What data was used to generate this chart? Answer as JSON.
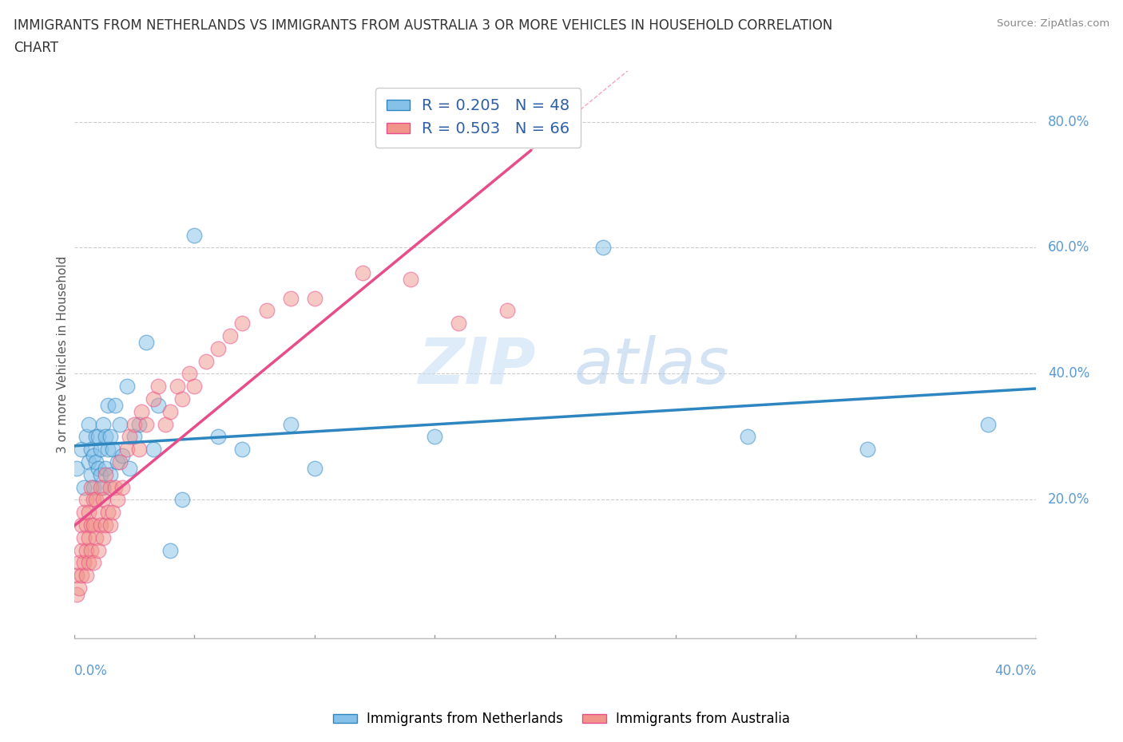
{
  "title_line1": "IMMIGRANTS FROM NETHERLANDS VS IMMIGRANTS FROM AUSTRALIA 3 OR MORE VEHICLES IN HOUSEHOLD CORRELATION",
  "title_line2": "CHART",
  "source": "Source: ZipAtlas.com",
  "ylabel": "3 or more Vehicles in Household",
  "yticks_labels": [
    "20.0%",
    "40.0%",
    "60.0%",
    "80.0%"
  ],
  "ytick_vals": [
    0.2,
    0.4,
    0.6,
    0.8
  ],
  "xlim": [
    0.0,
    0.4
  ],
  "ylim": [
    -0.02,
    0.88
  ],
  "legend1_label": "R = 0.205   N = 48",
  "legend2_label": "R = 0.503   N = 66",
  "color_netherlands": "#85C1E9",
  "color_australia": "#F1948A",
  "color_nl_line": "#2E86C1",
  "color_au_line": "#E74C8B",
  "watermark_zip": "ZIP",
  "watermark_atlas": "atlas",
  "legend_text_color": "#2E5FA3",
  "nl_x": [
    0.001,
    0.003,
    0.004,
    0.005,
    0.006,
    0.006,
    0.007,
    0.007,
    0.008,
    0.008,
    0.009,
    0.009,
    0.01,
    0.01,
    0.011,
    0.011,
    0.012,
    0.012,
    0.013,
    0.013,
    0.014,
    0.014,
    0.015,
    0.015,
    0.016,
    0.017,
    0.018,
    0.019,
    0.02,
    0.022,
    0.023,
    0.025,
    0.027,
    0.03,
    0.033,
    0.035,
    0.04,
    0.045,
    0.05,
    0.06,
    0.07,
    0.09,
    0.1,
    0.15,
    0.22,
    0.28,
    0.33,
    0.38
  ],
  "nl_y": [
    0.25,
    0.28,
    0.22,
    0.3,
    0.26,
    0.32,
    0.24,
    0.28,
    0.22,
    0.27,
    0.26,
    0.3,
    0.25,
    0.3,
    0.24,
    0.28,
    0.22,
    0.32,
    0.25,
    0.3,
    0.28,
    0.35,
    0.24,
    0.3,
    0.28,
    0.35,
    0.26,
    0.32,
    0.27,
    0.38,
    0.25,
    0.3,
    0.32,
    0.45,
    0.28,
    0.35,
    0.12,
    0.2,
    0.62,
    0.3,
    0.28,
    0.32,
    0.25,
    0.3,
    0.6,
    0.3,
    0.28,
    0.32
  ],
  "au_x": [
    0.001,
    0.001,
    0.002,
    0.002,
    0.003,
    0.003,
    0.003,
    0.004,
    0.004,
    0.004,
    0.005,
    0.005,
    0.005,
    0.005,
    0.006,
    0.006,
    0.006,
    0.007,
    0.007,
    0.007,
    0.008,
    0.008,
    0.008,
    0.009,
    0.009,
    0.01,
    0.01,
    0.011,
    0.011,
    0.012,
    0.012,
    0.013,
    0.013,
    0.014,
    0.015,
    0.015,
    0.016,
    0.017,
    0.018,
    0.019,
    0.02,
    0.022,
    0.023,
    0.025,
    0.027,
    0.028,
    0.03,
    0.033,
    0.035,
    0.038,
    0.04,
    0.043,
    0.045,
    0.048,
    0.05,
    0.055,
    0.06,
    0.065,
    0.07,
    0.08,
    0.09,
    0.1,
    0.12,
    0.14,
    0.16,
    0.18
  ],
  "au_y": [
    0.05,
    0.08,
    0.06,
    0.1,
    0.08,
    0.12,
    0.16,
    0.1,
    0.14,
    0.18,
    0.08,
    0.12,
    0.16,
    0.2,
    0.1,
    0.14,
    0.18,
    0.12,
    0.16,
    0.22,
    0.1,
    0.16,
    0.2,
    0.14,
    0.2,
    0.12,
    0.18,
    0.16,
    0.22,
    0.14,
    0.2,
    0.16,
    0.24,
    0.18,
    0.16,
    0.22,
    0.18,
    0.22,
    0.2,
    0.26,
    0.22,
    0.28,
    0.3,
    0.32,
    0.28,
    0.34,
    0.32,
    0.36,
    0.38,
    0.32,
    0.34,
    0.38,
    0.36,
    0.4,
    0.38,
    0.42,
    0.44,
    0.46,
    0.48,
    0.5,
    0.52,
    0.52,
    0.56,
    0.55,
    0.48,
    0.5
  ]
}
